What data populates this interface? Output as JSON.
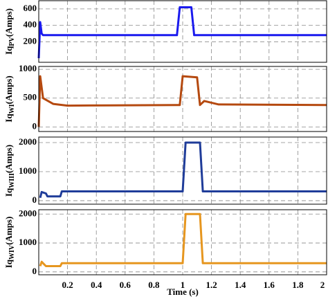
{
  "chart_data": [
    {
      "type": "line",
      "ylabel": {
        "main": "Iq",
        "sub": "PV",
        "unit": "(Amps)"
      },
      "x": [
        0,
        0.01,
        0.02,
        0.03,
        0.96,
        0.98,
        1.06,
        1.08,
        2
      ],
      "series": [
        {
          "color": "#1a1aee",
          "values": [
            0,
            440,
            300,
            280,
            280,
            620,
            620,
            280,
            280
          ]
        }
      ],
      "xlim": [
        0,
        2
      ],
      "xticks": [
        0.2,
        0.4,
        0.6,
        0.8,
        1,
        1.2,
        1.4,
        1.6,
        1.8,
        2
      ],
      "ylim": [
        -50,
        700
      ],
      "yticks": [
        200,
        400,
        600
      ],
      "grid": true
    },
    {
      "type": "line",
      "ylabel": {
        "main": "Iq",
        "sub": "WI",
        "unit": "(Amps)"
      },
      "x": [
        0,
        0.01,
        0.03,
        0.1,
        0.2,
        0.5,
        0.98,
        1.0,
        1.1,
        1.12,
        1.15,
        1.25,
        2
      ],
      "series": [
        {
          "color": "#b5490f",
          "values": [
            0,
            880,
            500,
            400,
            370,
            375,
            380,
            880,
            860,
            380,
            450,
            390,
            380
          ]
        }
      ],
      "xlim": [
        0,
        2
      ],
      "xticks": [
        0.2,
        0.4,
        0.6,
        0.8,
        1,
        1.2,
        1.4,
        1.6,
        1.8,
        2
      ],
      "ylim": [
        -80,
        1050
      ],
      "yticks": [
        0,
        500,
        1000
      ],
      "grid": true
    },
    {
      "type": "line",
      "ylabel": {
        "main": "Iq",
        "sub": "WIII",
        "unit": "(Amps)"
      },
      "x": [
        0.01,
        0.02,
        0.05,
        0.06,
        0.15,
        0.16,
        1.0,
        1.02,
        1.12,
        1.14,
        2
      ],
      "series": [
        {
          "color": "#1f3c99",
          "values": [
            100,
            300,
            250,
            150,
            150,
            320,
            320,
            2000,
            2000,
            320,
            320
          ]
        }
      ],
      "xlim": [
        0,
        2
      ],
      "xticks": [
        0.2,
        0.4,
        0.6,
        0.8,
        1,
        1.2,
        1.4,
        1.6,
        1.8,
        2
      ],
      "ylim": [
        -120,
        2190
      ],
      "yticks": [
        0,
        1000,
        2000
      ],
      "grid": true
    },
    {
      "type": "line",
      "ylabel": {
        "main": "Iq",
        "sub": "WIV",
        "unit": "(Amps)"
      },
      "xlabel": "Time (s)",
      "x": [
        0.01,
        0.02,
        0.04,
        0.05,
        0.15,
        0.16,
        1.0,
        1.02,
        1.12,
        1.14,
        2
      ],
      "series": [
        {
          "color": "#e6961f",
          "values": [
            200,
            350,
            250,
            200,
            200,
            300,
            300,
            2000,
            2000,
            300,
            300
          ]
        }
      ],
      "xlim": [
        0,
        2
      ],
      "xticks": [
        0.2,
        0.4,
        0.6,
        0.8,
        1,
        1.2,
        1.4,
        1.6,
        1.8,
        2
      ],
      "ylim": [
        -100,
        2150
      ],
      "yticks": [
        0,
        1000,
        2000
      ],
      "grid": true
    }
  ]
}
